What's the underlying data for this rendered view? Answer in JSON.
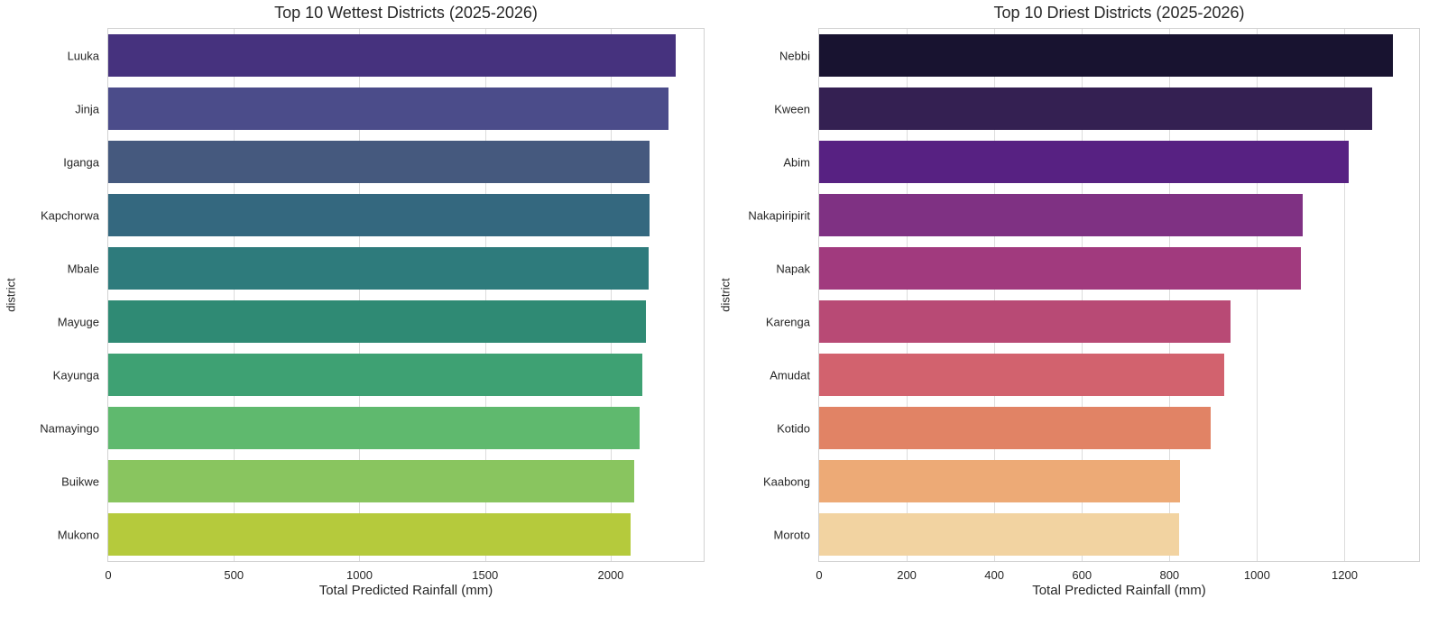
{
  "figure": {
    "background": "#ffffff",
    "text_color": "#262626",
    "grid_color": "#dcdcdc",
    "spine_color": "#d2d2d2"
  },
  "chart_data": [
    {
      "type": "bar",
      "orientation": "horizontal",
      "title": "Top 10 Wettest Districts (2025-2026)",
      "xlabel": "Total Predicted Rainfall (mm)",
      "ylabel": "district",
      "categories": [
        "Luuka",
        "Jinja",
        "Iganga",
        "Kapchorwa",
        "Mbale",
        "Mayuge",
        "Kayunga",
        "Namayingo",
        "Buikwe",
        "Mukono"
      ],
      "values": [
        2260,
        2230,
        2155,
        2153,
        2152,
        2140,
        2126,
        2114,
        2094,
        2078
      ],
      "bar_colors": [
        "#46327e",
        "#4b4c8a",
        "#45597e",
        "#34687f",
        "#2e7b7c",
        "#2f8a74",
        "#3ea173",
        "#5fb96e",
        "#89c55f",
        "#b5ca3c"
      ],
      "palette_name": "viridis",
      "xlim": [
        0,
        2370
      ],
      "xticks": [
        0,
        500,
        1000,
        1500,
        2000
      ],
      "grid": true,
      "legend": null
    },
    {
      "type": "bar",
      "orientation": "horizontal",
      "title": "Top 10 Driest Districts (2025-2026)",
      "xlabel": "Total Predicted Rainfall (mm)",
      "ylabel": "district",
      "categories": [
        "Nebbi",
        "Kween",
        "Abim",
        "Nakapiripirit",
        "Napak",
        "Karenga",
        "Amudat",
        "Kotido",
        "Kaabong",
        "Moroto"
      ],
      "values": [
        1310,
        1263,
        1210,
        1104,
        1101,
        940,
        926,
        895,
        825,
        823
      ],
      "bar_colors": [
        "#181330",
        "#342052",
        "#572182",
        "#7f3183",
        "#a13a7e",
        "#b84a75",
        "#d2626e",
        "#e18365",
        "#edaa76",
        "#f2d3a1"
      ],
      "palette_name": "magma",
      "xlim": [
        0,
        1370
      ],
      "xticks": [
        0,
        200,
        400,
        600,
        800,
        1000,
        1200
      ],
      "grid": true,
      "legend": null
    }
  ]
}
